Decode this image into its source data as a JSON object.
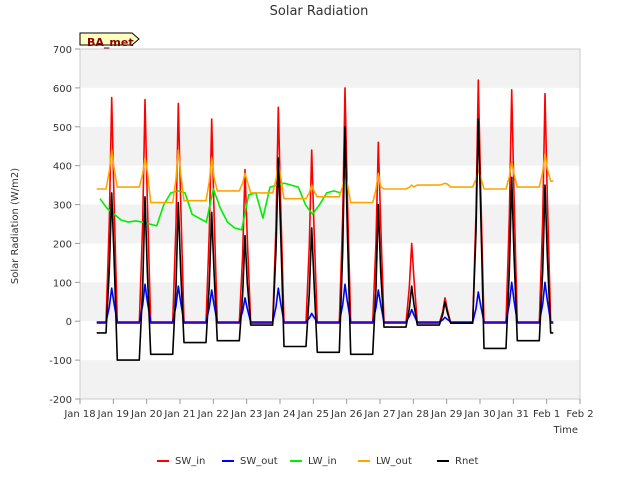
{
  "chart_data": {
    "type": "line",
    "title": "Solar Radiation",
    "xlabel": "Time",
    "ylabel": "Solar Radiation (W/m2)",
    "station_badge": "BA_met",
    "ylim": [
      -200,
      700
    ],
    "yticks": [
      -200,
      -100,
      0,
      100,
      200,
      300,
      400,
      500,
      600,
      700
    ],
    "xlim": [
      0,
      15
    ],
    "xtick_labels": [
      "Jan 18",
      "Jan 19",
      "Jan 20",
      "Jan 21",
      "Jan 22",
      "Jan 23",
      "Jan 24",
      "Jan 25",
      "Jan 26",
      "Jan 27",
      "Jan 28",
      "Jan 29",
      "Jan 30",
      "Jan 31",
      "Feb 1",
      "Feb 2"
    ],
    "grid": "horizontal bands",
    "legend_position": "bottom",
    "series": [
      {
        "name": "SW_in",
        "color": "#ff0000",
        "daily_peak": [
          575,
          570,
          560,
          520,
          390,
          550,
          440,
          600,
          460,
          200,
          60,
          620,
          595,
          585
        ],
        "night_value": -5
      },
      {
        "name": "SW_out",
        "color": "#0000ff",
        "daily_peak": [
          85,
          95,
          90,
          80,
          60,
          85,
          20,
          95,
          80,
          30,
          10,
          75,
          100,
          100
        ],
        "night_value": -2
      },
      {
        "name": "LW_in",
        "color": "#00ee00",
        "daily_values": [
          [
            0.0,
            315
          ],
          [
            0.5,
            290
          ],
          [
            1.0,
            275
          ],
          [
            1.5,
            260
          ],
          [
            2.0,
            255
          ],
          [
            2.5,
            258
          ],
          [
            3.0,
            255
          ],
          [
            3.5,
            250
          ],
          [
            4.0,
            245
          ],
          [
            4.5,
            300
          ],
          [
            5.0,
            330
          ],
          [
            5.5,
            335
          ],
          [
            6.0,
            330
          ],
          [
            6.5,
            275
          ],
          [
            7.0,
            265
          ],
          [
            7.5,
            255
          ],
          [
            8.0,
            340
          ],
          [
            8.5,
            290
          ],
          [
            9.0,
            255
          ],
          [
            9.5,
            240
          ],
          [
            10.0,
            235
          ],
          [
            10.5,
            325
          ],
          [
            11.0,
            330
          ],
          [
            11.5,
            265
          ],
          [
            12.0,
            345
          ],
          [
            12.5,
            350
          ],
          [
            13.0,
            355
          ],
          [
            13.5,
            350
          ],
          [
            14.0,
            345
          ],
          [
            14.5,
            300
          ],
          [
            15.0,
            275
          ],
          [
            15.5,
            300
          ],
          [
            16.0,
            330
          ],
          [
            16.5,
            335
          ],
          [
            17.0,
            330
          ]
        ]
      },
      {
        "name": "LW_out",
        "color": "#ffa500",
        "daily_peak": [
          440,
          420,
          440,
          420,
          380,
          405,
          350,
          380,
          380,
          350,
          355,
          390,
          410,
          430
        ],
        "night_value": [
          340,
          345,
          305,
          310,
          335,
          330,
          315,
          320,
          305,
          340,
          350,
          345,
          340,
          345,
          360
        ]
      },
      {
        "name": "Rnet",
        "color": "#000000",
        "daily_peak": [
          330,
          320,
          305,
          280,
          220,
          420,
          240,
          500,
          300,
          90,
          50,
          520,
          370,
          350
        ],
        "night_value": [
          -30,
          -100,
          -85,
          -55,
          -50,
          -10,
          -65,
          -80,
          -85,
          -15,
          -10,
          -5,
          -70,
          -50,
          -30
        ]
      }
    ]
  }
}
